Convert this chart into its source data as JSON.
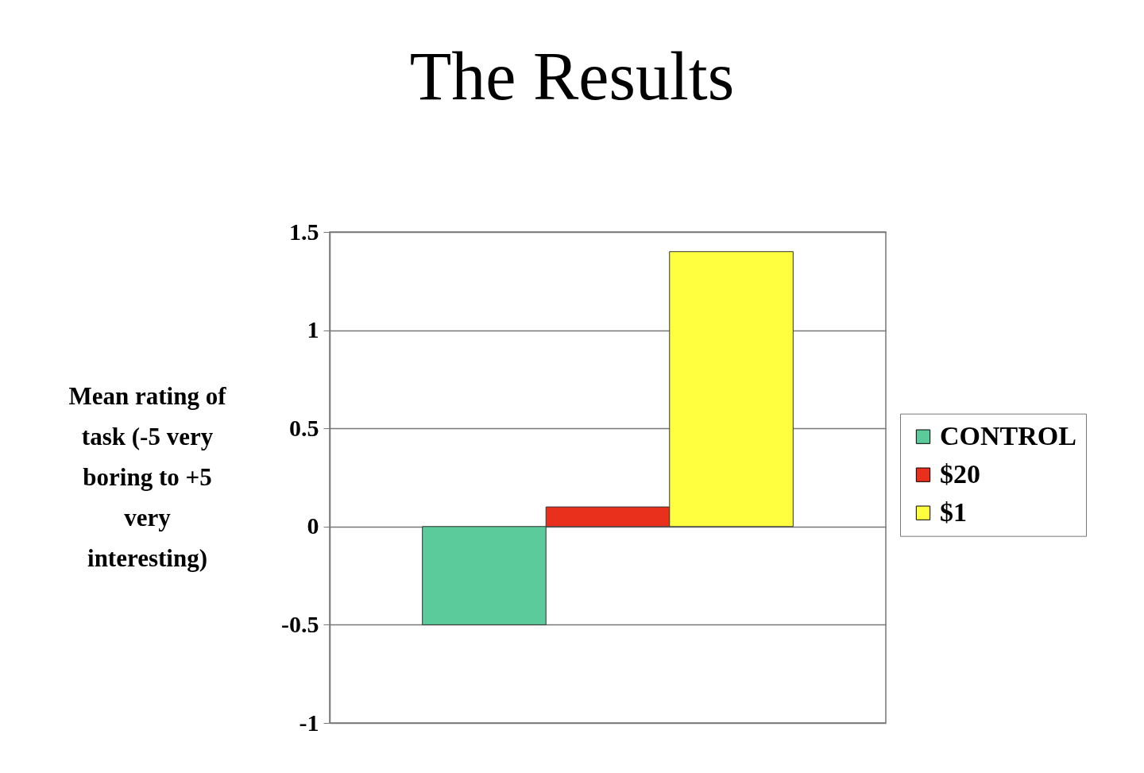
{
  "chart_data": {
    "type": "bar",
    "title": "The Results",
    "ylabel": "Mean rating of task (-5 very boring to +5 very interesting)",
    "categories": [
      null
    ],
    "series": [
      {
        "name": "CONTROL",
        "color": "#5ccb9b",
        "values": [
          -0.5
        ]
      },
      {
        "name": "$20",
        "color": "#e8301c",
        "values": [
          0.1
        ]
      },
      {
        "name": "$1",
        "color": "#ffff40",
        "values": [
          1.4
        ]
      }
    ],
    "ylim": [
      -1,
      1.5
    ],
    "yticks": [
      -1,
      -0.5,
      0,
      0.5,
      1,
      1.5
    ],
    "grid": "y",
    "legend": "right",
    "tick_labels": "y"
  }
}
